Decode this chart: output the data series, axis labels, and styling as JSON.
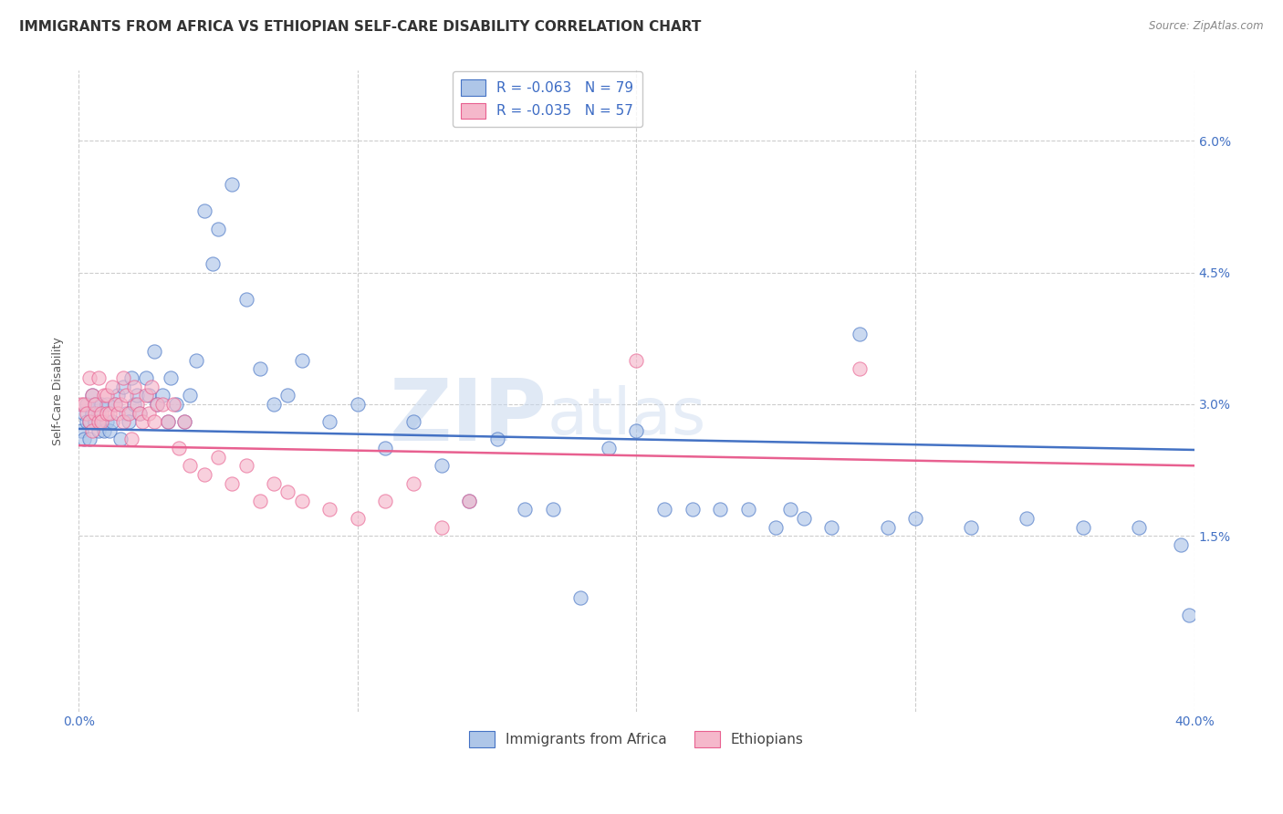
{
  "title": "IMMIGRANTS FROM AFRICA VS ETHIOPIAN SELF-CARE DISABILITY CORRELATION CHART",
  "source": "Source: ZipAtlas.com",
  "ylabel": "Self-Care Disability",
  "ytick_labels": [
    "1.5%",
    "3.0%",
    "4.5%",
    "6.0%"
  ],
  "ytick_values": [
    0.015,
    0.03,
    0.045,
    0.06
  ],
  "xlim": [
    0.0,
    0.4
  ],
  "ylim": [
    -0.005,
    0.068
  ],
  "legend_entry1": "R = -0.063   N = 79",
  "legend_entry2": "R = -0.035   N = 57",
  "legend_label1": "Immigrants from Africa",
  "legend_label2": "Ethiopians",
  "color_blue": "#aec6e8",
  "color_pink": "#f5b8cb",
  "line_color_blue": "#4472c4",
  "line_color_pink": "#e86090",
  "legend_text_color": "#3c6bc4",
  "watermark_zip": "ZIP",
  "watermark_atlas": "atlas",
  "blue_scatter_x": [
    0.001,
    0.002,
    0.002,
    0.003,
    0.003,
    0.004,
    0.004,
    0.005,
    0.005,
    0.006,
    0.006,
    0.007,
    0.007,
    0.008,
    0.008,
    0.009,
    0.01,
    0.01,
    0.011,
    0.012,
    0.013,
    0.014,
    0.015,
    0.016,
    0.017,
    0.018,
    0.019,
    0.02,
    0.021,
    0.022,
    0.024,
    0.025,
    0.027,
    0.028,
    0.03,
    0.032,
    0.033,
    0.035,
    0.038,
    0.04,
    0.042,
    0.045,
    0.048,
    0.05,
    0.055,
    0.06,
    0.065,
    0.07,
    0.075,
    0.08,
    0.09,
    0.1,
    0.11,
    0.12,
    0.13,
    0.14,
    0.15,
    0.16,
    0.17,
    0.18,
    0.19,
    0.2,
    0.21,
    0.22,
    0.23,
    0.24,
    0.25,
    0.255,
    0.26,
    0.27,
    0.28,
    0.29,
    0.3,
    0.32,
    0.34,
    0.36,
    0.38,
    0.395,
    0.398
  ],
  "blue_scatter_y": [
    0.027,
    0.029,
    0.026,
    0.028,
    0.03,
    0.028,
    0.026,
    0.029,
    0.031,
    0.028,
    0.03,
    0.027,
    0.029,
    0.028,
    0.03,
    0.027,
    0.028,
    0.03,
    0.027,
    0.028,
    0.03,
    0.031,
    0.026,
    0.032,
    0.029,
    0.028,
    0.033,
    0.03,
    0.031,
    0.029,
    0.033,
    0.031,
    0.036,
    0.03,
    0.031,
    0.028,
    0.033,
    0.03,
    0.028,
    0.031,
    0.035,
    0.052,
    0.046,
    0.05,
    0.055,
    0.042,
    0.034,
    0.03,
    0.031,
    0.035,
    0.028,
    0.03,
    0.025,
    0.028,
    0.023,
    0.019,
    0.026,
    0.018,
    0.018,
    0.008,
    0.025,
    0.027,
    0.018,
    0.018,
    0.018,
    0.018,
    0.016,
    0.018,
    0.017,
    0.016,
    0.038,
    0.016,
    0.017,
    0.016,
    0.017,
    0.016,
    0.016,
    0.014,
    0.006
  ],
  "pink_scatter_x": [
    0.001,
    0.002,
    0.003,
    0.004,
    0.004,
    0.005,
    0.005,
    0.006,
    0.006,
    0.007,
    0.007,
    0.008,
    0.008,
    0.009,
    0.01,
    0.01,
    0.011,
    0.012,
    0.013,
    0.014,
    0.015,
    0.016,
    0.016,
    0.017,
    0.018,
    0.019,
    0.02,
    0.021,
    0.022,
    0.023,
    0.024,
    0.025,
    0.026,
    0.027,
    0.028,
    0.03,
    0.032,
    0.034,
    0.036,
    0.038,
    0.04,
    0.045,
    0.05,
    0.055,
    0.06,
    0.065,
    0.07,
    0.075,
    0.08,
    0.09,
    0.1,
    0.11,
    0.12,
    0.13,
    0.14,
    0.2,
    0.28
  ],
  "pink_scatter_y": [
    0.03,
    0.03,
    0.029,
    0.028,
    0.033,
    0.027,
    0.031,
    0.029,
    0.03,
    0.028,
    0.033,
    0.029,
    0.028,
    0.031,
    0.029,
    0.031,
    0.029,
    0.032,
    0.03,
    0.029,
    0.03,
    0.028,
    0.033,
    0.031,
    0.029,
    0.026,
    0.032,
    0.03,
    0.029,
    0.028,
    0.031,
    0.029,
    0.032,
    0.028,
    0.03,
    0.03,
    0.028,
    0.03,
    0.025,
    0.028,
    0.023,
    0.022,
    0.024,
    0.021,
    0.023,
    0.019,
    0.021,
    0.02,
    0.019,
    0.018,
    0.017,
    0.019,
    0.021,
    0.016,
    0.019,
    0.035,
    0.034
  ],
  "blue_line_x": [
    0.0,
    0.4
  ],
  "blue_line_y": [
    0.0272,
    0.0248
  ],
  "pink_line_x": [
    0.0,
    0.4
  ],
  "pink_line_y": [
    0.0253,
    0.023
  ],
  "background_color": "#ffffff",
  "grid_color": "#cccccc",
  "title_fontsize": 11,
  "axis_label_fontsize": 9,
  "tick_fontsize": 10,
  "scatter_size": 120,
  "scatter_alpha": 0.65,
  "scatter_linewidth": 0.8
}
